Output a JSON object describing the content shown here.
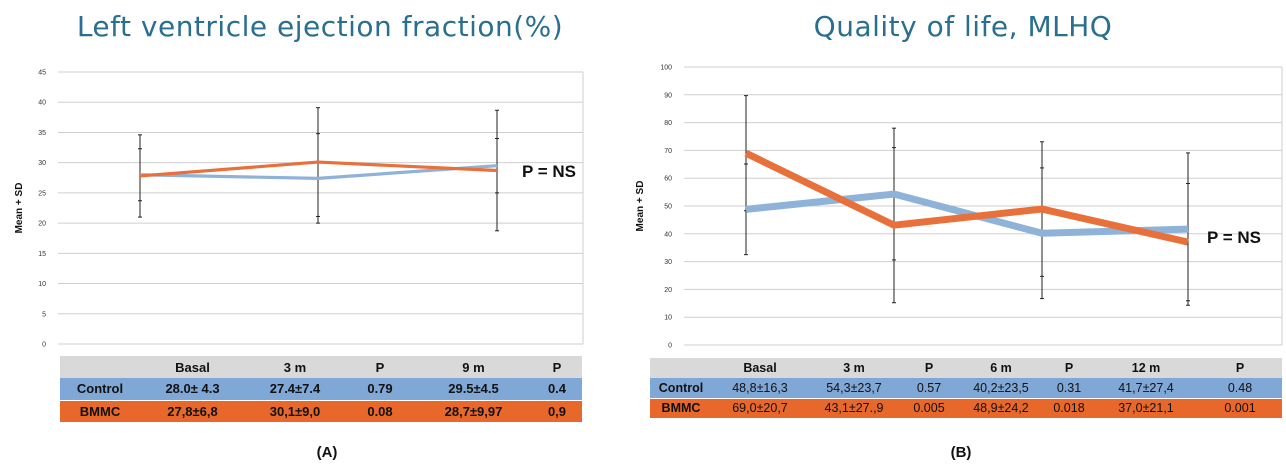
{
  "chart_data": [
    {
      "type": "line",
      "title": "Left ventricle ejection fraction(%)",
      "ylabel": "Mean + SD",
      "ylim": [
        0,
        45
      ],
      "yticks": [
        0,
        5,
        10,
        15,
        20,
        25,
        30,
        35,
        40,
        45
      ],
      "categories": [
        "Basal",
        "3 m",
        "9 m"
      ],
      "series": [
        {
          "name": "Control",
          "color": "#8fb2d9",
          "values": [
            28.0,
            27.4,
            29.5
          ],
          "err": [
            4.3,
            7.4,
            4.5
          ]
        },
        {
          "name": "BMMC",
          "color": "#e8703a",
          "values": [
            27.8,
            30.1,
            28.7
          ],
          "err": [
            6.8,
            9.0,
            9.97
          ]
        }
      ],
      "annotation": "P = NS",
      "caption": "(A)",
      "table": {
        "header": [
          "",
          "Basal",
          "3 m",
          "P",
          "9 m",
          "P"
        ],
        "rows": [
          [
            "Control",
            "28.0± 4.3",
            "27.4±7.4",
            "0.79",
            "29.5±4.5",
            "0.4"
          ],
          [
            "BMMC",
            "27,8±6,8",
            "30,1±9,0",
            "0.08",
            "28,7±9,97",
            "0,9"
          ]
        ]
      }
    },
    {
      "type": "line",
      "title": "Quality of life, MLHQ",
      "ylabel": "Mean + SD",
      "ylim": [
        0,
        100
      ],
      "yticks": [
        0,
        10,
        20,
        30,
        40,
        50,
        60,
        70,
        80,
        90,
        100
      ],
      "categories": [
        "Basal",
        "3 m",
        "6 m",
        "12 m"
      ],
      "series": [
        {
          "name": "Control",
          "color": "#8fb2d9",
          "values": [
            48.8,
            54.3,
            40.2,
            41.7
          ],
          "err": [
            16.3,
            23.7,
            23.5,
            27.4
          ]
        },
        {
          "name": "BMMC",
          "color": "#e8703a",
          "values": [
            69.0,
            43.1,
            48.9,
            37.0
          ],
          "err": [
            20.7,
            27.9,
            24.2,
            21.1
          ]
        }
      ],
      "annotation": "P = NS",
      "caption": "(B)",
      "table": {
        "header": [
          "",
          "Basal",
          "3 m",
          "P",
          "6 m",
          "P",
          "12 m",
          "P"
        ],
        "rows": [
          [
            "Control",
            "48,8±16,3",
            "54,3±23,7",
            "0.57",
            "40,2±23,5",
            "0.31",
            "41,7±27,4",
            "0.48"
          ],
          [
            "BMMC",
            "69,0±20,7",
            "43,1±27.,9",
            "0.005",
            "48,9±24,2",
            "0.018",
            "37,0±21,1",
            "0.001"
          ]
        ]
      }
    }
  ]
}
